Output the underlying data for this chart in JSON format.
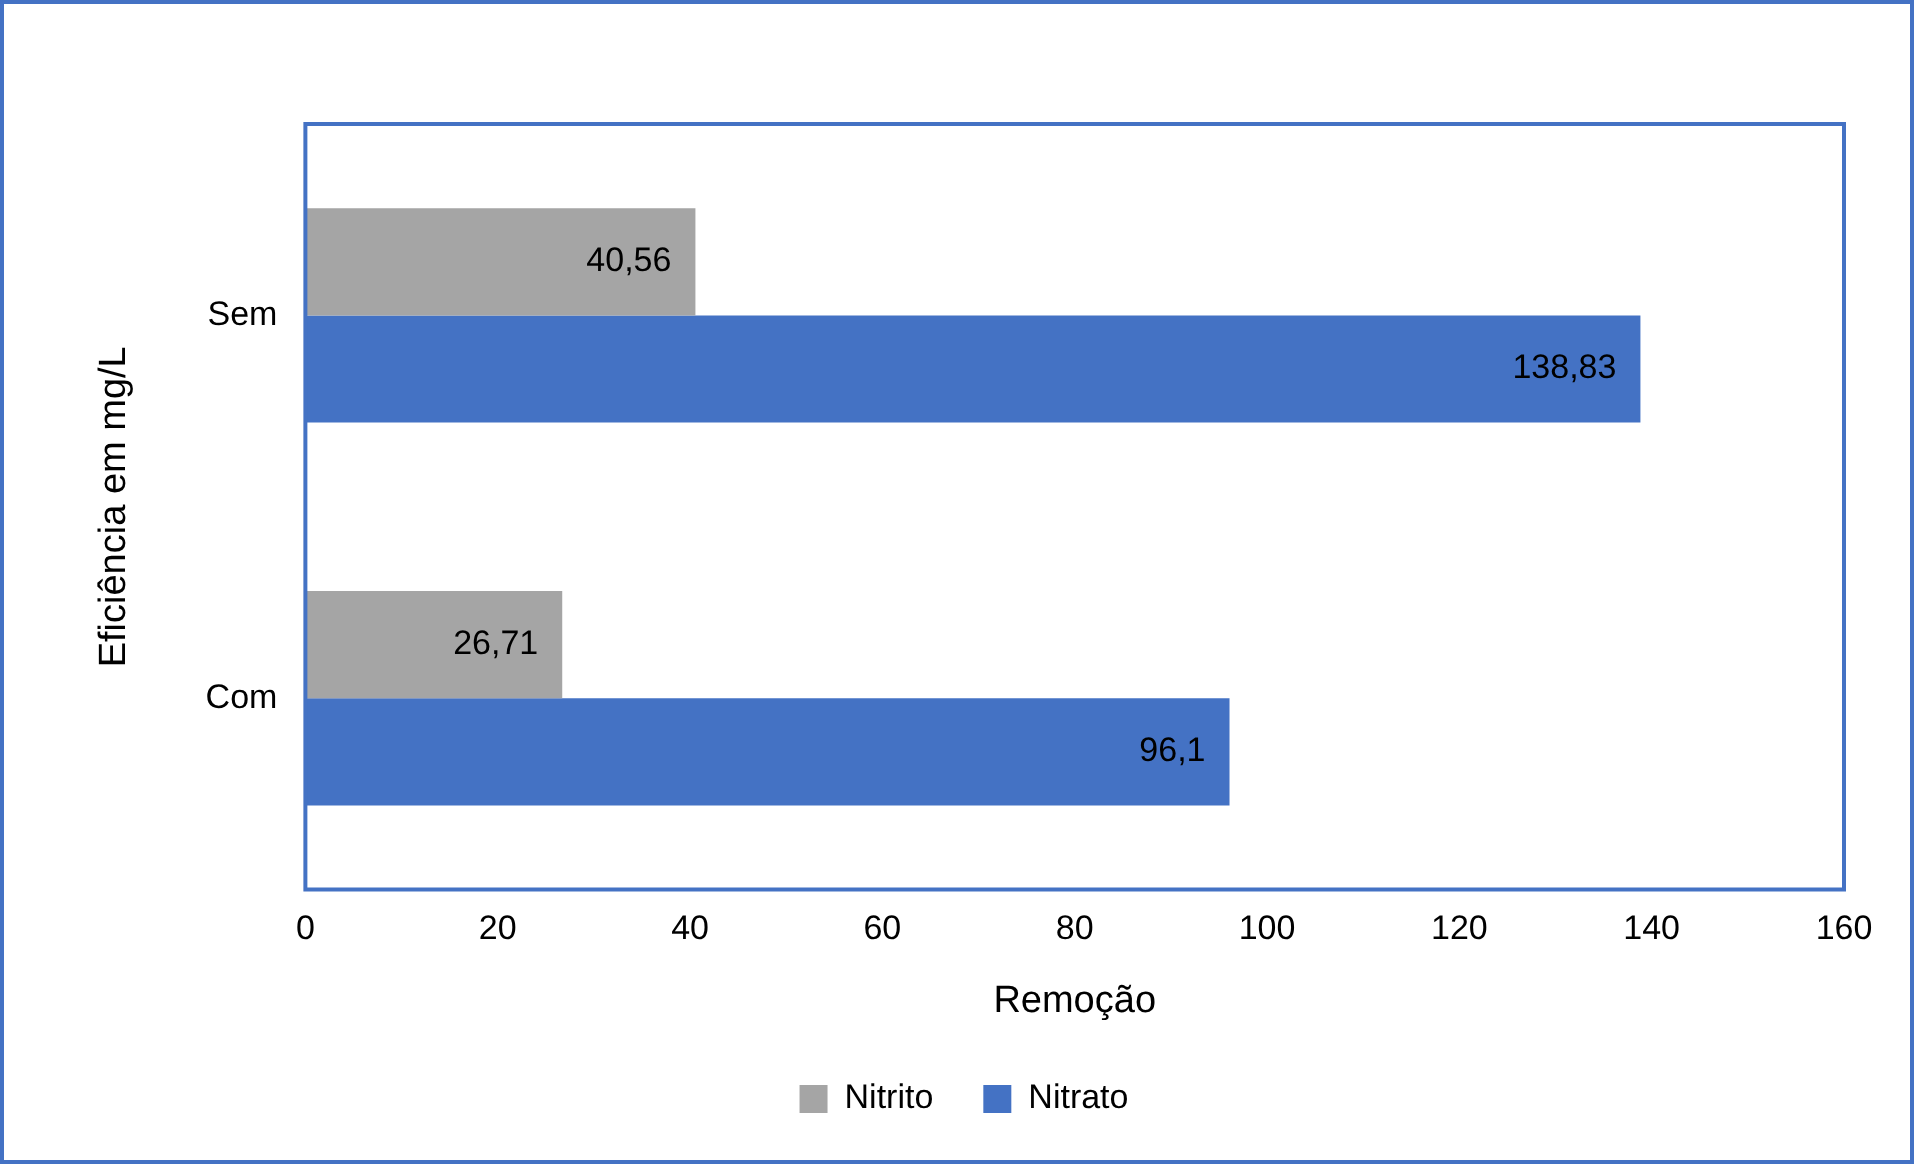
{
  "chart_data": {
    "type": "bar",
    "orientation": "horizontal",
    "ylabel": "Eficiência em mg/L",
    "xlabel": "Remoção",
    "categories": [
      "Sem",
      "Com"
    ],
    "series": [
      {
        "name": "Nitrito",
        "color": "#a5a5a5",
        "values": [
          40.56,
          26.71
        ],
        "value_labels": [
          "40,56",
          "26,71"
        ]
      },
      {
        "name": "Nitrato",
        "color": "#4472c4",
        "values": [
          138.83,
          96.1
        ],
        "value_labels": [
          "138,83",
          "96,1"
        ]
      }
    ],
    "xlim": [
      0,
      160
    ],
    "xticks": [
      0,
      20,
      40,
      60,
      80,
      100,
      120,
      140,
      160
    ],
    "grid": false,
    "legend": "bottom"
  }
}
